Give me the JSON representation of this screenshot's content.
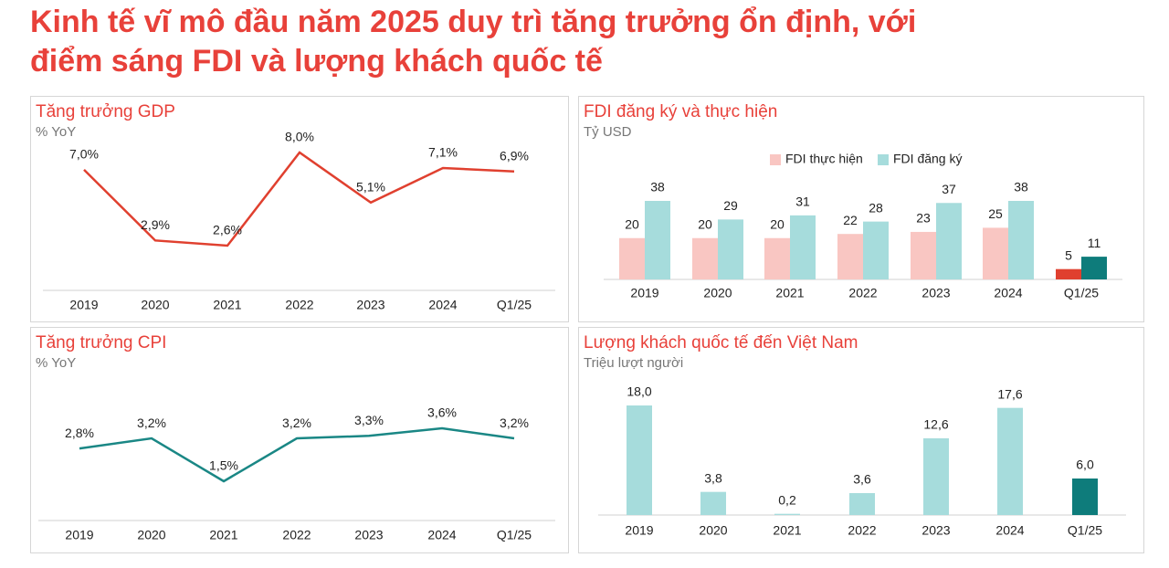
{
  "title": [
    "Kinh tế vĩ mô đầu năm 2025 duy trì tăng trưởng ổn định, với",
    "điểm sáng FDI và lượng khách quốc tế"
  ],
  "chart_data": [
    {
      "type": "line",
      "title": "Tăng trưởng GDP",
      "subtitle": "% YoY",
      "categories": [
        "2019",
        "2020",
        "2021",
        "2022",
        "2023",
        "2024",
        "Q1/25"
      ],
      "series": [
        {
          "color": "#e0402f",
          "values": [
            7.0,
            2.9,
            2.6,
            8.0,
            5.1,
            7.1,
            6.9
          ],
          "value_labels": [
            "7,0%",
            "2,9%",
            "2,6%",
            "8,0%",
            "5,1%",
            "7,1%",
            "6,9%"
          ]
        }
      ]
    },
    {
      "type": "bar",
      "title": "FDI đăng ký và thực hiện",
      "subtitle": "Tỷ USD",
      "categories": [
        "2019",
        "2020",
        "2021",
        "2022",
        "2023",
        "2024",
        "Q1/25"
      ],
      "series": [
        {
          "name": "FDI thực hiện",
          "color": "#f9c6c2",
          "colors": [
            "#f9c6c2",
            "#f9c6c2",
            "#f9c6c2",
            "#f9c6c2",
            "#f9c6c2",
            "#f9c6c2",
            "#e0402f"
          ],
          "values": [
            20,
            20,
            20,
            22,
            23,
            25,
            5
          ]
        },
        {
          "name": "FDI đăng ký",
          "color": "#a6dcdc",
          "colors": [
            "#a6dcdc",
            "#a6dcdc",
            "#a6dcdc",
            "#a6dcdc",
            "#a6dcdc",
            "#a6dcdc",
            "#0e7c7b"
          ],
          "values": [
            38,
            29,
            31,
            28,
            37,
            38,
            11
          ]
        }
      ]
    },
    {
      "type": "line",
      "title": "Tăng trưởng CPI",
      "subtitle": "% YoY",
      "categories": [
        "2019",
        "2020",
        "2021",
        "2022",
        "2023",
        "2024",
        "Q1/25"
      ],
      "series": [
        {
          "color": "#1a8785",
          "values": [
            2.8,
            3.2,
            1.5,
            3.2,
            3.3,
            3.6,
            3.2
          ],
          "value_labels": [
            "2,8%",
            "3,2%",
            "1,5%",
            "3,2%",
            "3,3%",
            "3,6%",
            "3,2%"
          ]
        }
      ]
    },
    {
      "type": "bar",
      "title": "Lượng khách quốc tế đến Việt Nam",
      "subtitle": "Triệu lượt người",
      "categories": [
        "2019",
        "2020",
        "2021",
        "2022",
        "2023",
        "2024",
        "Q1/25"
      ],
      "series": [
        {
          "color": "#a6dcdc",
          "colors": [
            "#a6dcdc",
            "#a6dcdc",
            "#a6dcdc",
            "#a6dcdc",
            "#a6dcdc",
            "#a6dcdc",
            "#0e7c7b"
          ],
          "values": [
            18.0,
            3.8,
            0.2,
            3.6,
            12.6,
            17.6,
            6.0
          ],
          "value_labels": [
            "18,0",
            "3,8",
            "0,2",
            "3,6",
            "12,6",
            "17,6",
            "6,0"
          ]
        }
      ]
    }
  ]
}
